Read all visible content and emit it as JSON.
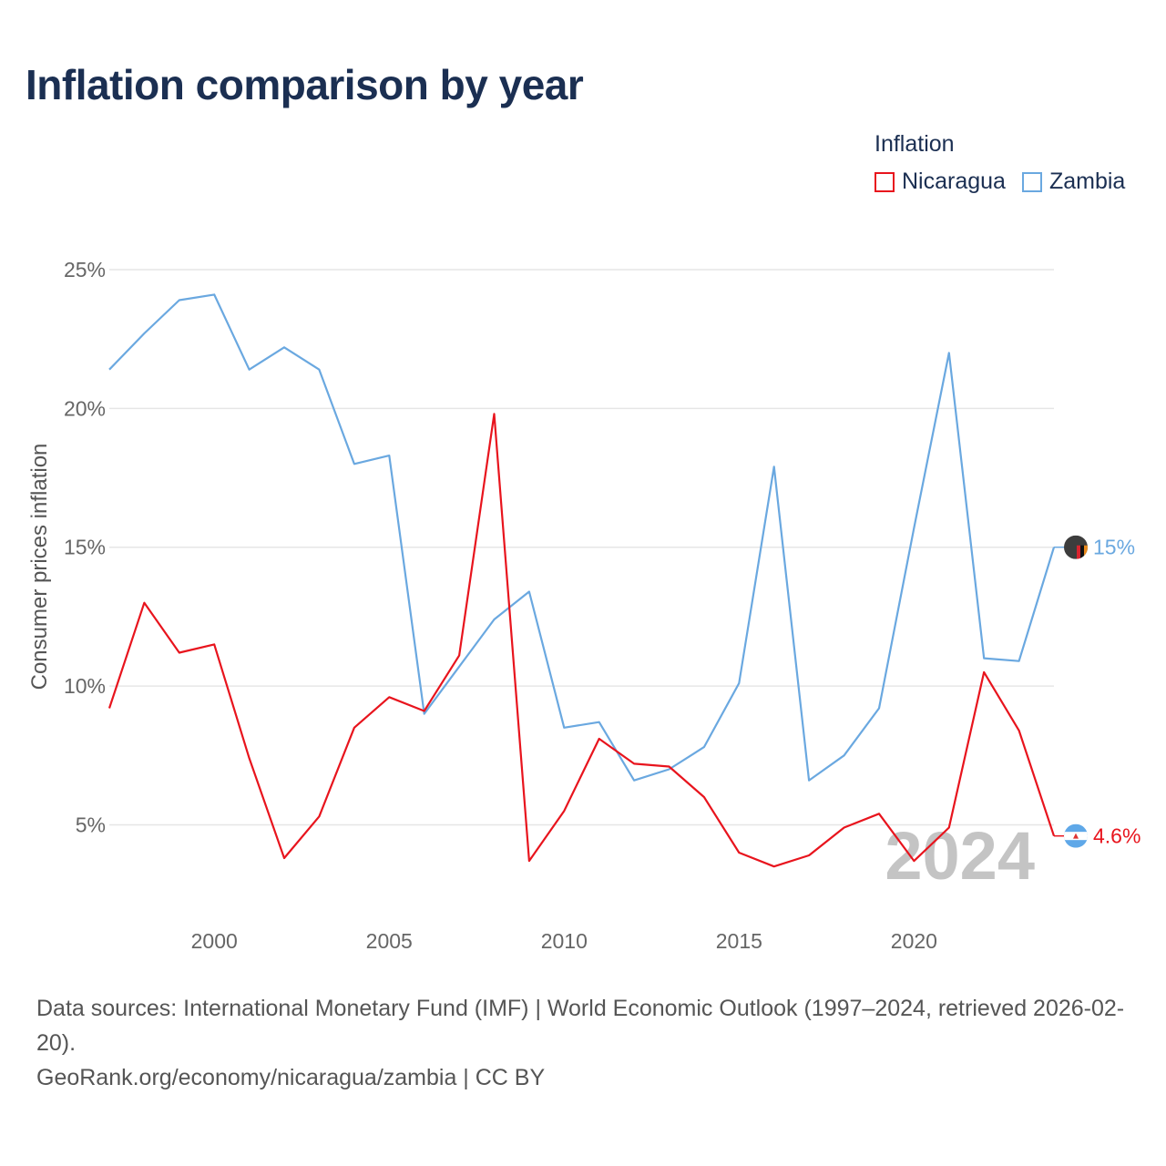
{
  "chart_data": {
    "type": "line",
    "title": "Inflation comparison by year",
    "ylabel": "Consumer prices inflation",
    "xlabel": "",
    "legend_title": "Inflation",
    "ylim": [
      1.8,
      27
    ],
    "xlim": [
      1997,
      2024
    ],
    "yticks": [
      {
        "value": 5,
        "label": "5%"
      },
      {
        "value": 10,
        "label": "10%"
      },
      {
        "value": 15,
        "label": "15%"
      },
      {
        "value": 20,
        "label": "20%"
      },
      {
        "value": 25,
        "label": "25%"
      }
    ],
    "xticks": [
      {
        "value": 2000,
        "label": "2000"
      },
      {
        "value": 2005,
        "label": "2005"
      },
      {
        "value": 2010,
        "label": "2010"
      },
      {
        "value": 2015,
        "label": "2015"
      },
      {
        "value": 2020,
        "label": "2020"
      }
    ],
    "x": [
      1997,
      1998,
      1999,
      2000,
      2001,
      2002,
      2003,
      2004,
      2005,
      2006,
      2007,
      2008,
      2009,
      2010,
      2011,
      2012,
      2013,
      2014,
      2015,
      2016,
      2017,
      2018,
      2019,
      2020,
      2021,
      2022,
      2023,
      2024
    ],
    "series": [
      {
        "name": "Nicaragua",
        "color": "#e8141d",
        "values": [
          9.2,
          13.0,
          11.2,
          11.5,
          7.4,
          3.8,
          5.3,
          8.5,
          9.6,
          9.1,
          11.1,
          19.8,
          3.7,
          5.5,
          8.1,
          7.2,
          7.1,
          6.0,
          4.0,
          3.5,
          3.9,
          4.9,
          5.4,
          3.7,
          4.9,
          10.5,
          8.4,
          4.6
        ],
        "end_label": "4.6%"
      },
      {
        "name": "Zambia",
        "color": "#6aa8e0",
        "values": [
          21.4,
          22.7,
          23.9,
          24.1,
          21.4,
          22.2,
          21.4,
          18.0,
          18.3,
          9.0,
          10.7,
          12.4,
          13.4,
          8.5,
          8.7,
          6.6,
          7.0,
          7.8,
          10.1,
          17.9,
          6.6,
          7.5,
          9.2,
          15.7,
          22.0,
          11.0,
          10.9,
          15.0
        ],
        "end_label": "15%"
      }
    ],
    "year_watermark": "2024",
    "grid": true
  },
  "footer": {
    "line1": "Data sources: International Monetary Fund (IMF) | World Economic Outlook (1997–2024, retrieved 2026-02-20).",
    "line2": "GeoRank.org/economy/nicaragua/zambia | CC BY"
  },
  "icons": {
    "nicaragua_marker": "nicaragua-flag-icon",
    "zambia_marker": "zambia-flag-icon"
  }
}
